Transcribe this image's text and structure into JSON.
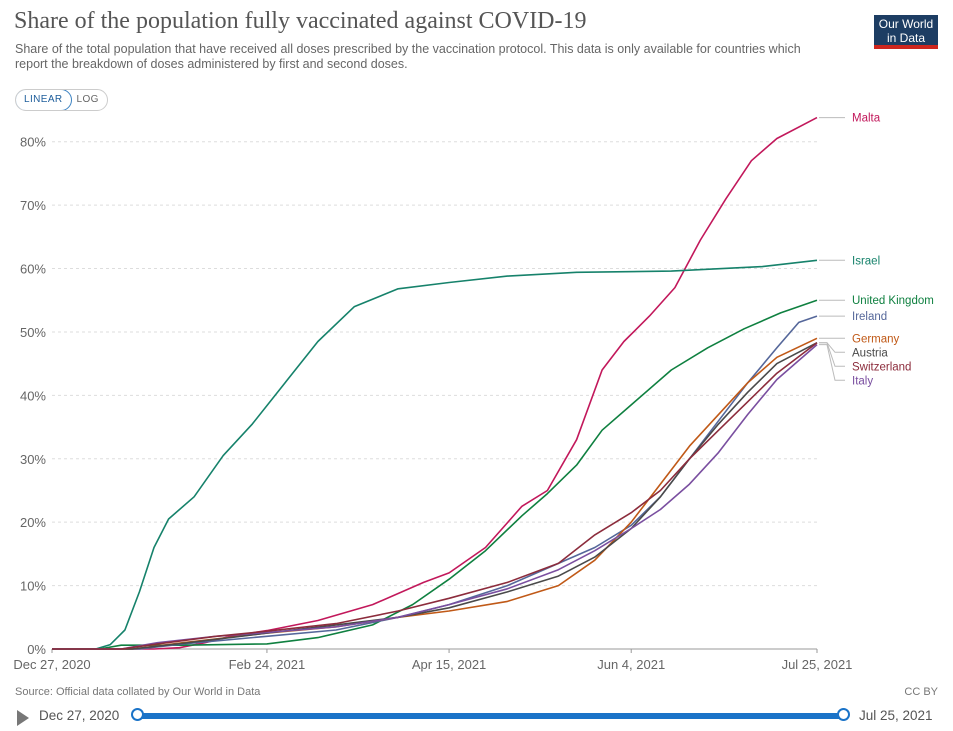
{
  "header": {
    "title": "Share of the population fully vaccinated against COVID-19",
    "subtitle": "Share of the total population that have received all doses prescribed by the vaccination protocol. This data is only available for countries which report the breakdown of doses administered by first and second doses.",
    "logo_line1": "Our World",
    "logo_line2": "in Data"
  },
  "controls": {
    "linear_label": "LINEAR",
    "log_label": "LOG"
  },
  "footer": {
    "source": "Source: Official data collated by Our World in Data",
    "license": "CC BY"
  },
  "timeline": {
    "start_label": "Dec 27, 2020",
    "end_label": "Jul 25, 2021",
    "start_fraction": 0,
    "end_fraction": 1
  },
  "colors": {
    "grid": "#dddddd",
    "axis_text": "#666666",
    "accent": "#1a73c8"
  },
  "chart_data": {
    "type": "line",
    "title": "Share of the population fully vaccinated against COVID-19",
    "x_axis": {
      "type": "date",
      "range": [
        "2020-12-27",
        "2021-07-25"
      ],
      "ticks": [
        {
          "date": "2020-12-27",
          "label": "Dec 27, 2020"
        },
        {
          "date": "2021-02-24",
          "label": "Feb 24, 2021"
        },
        {
          "date": "2021-04-15",
          "label": "Apr 15, 2021"
        },
        {
          "date": "2021-06-04",
          "label": "Jun 4, 2021"
        },
        {
          "date": "2021-07-25",
          "label": "Jul 25, 2021"
        }
      ]
    },
    "y_axis": {
      "range": [
        0,
        85
      ],
      "ticks": [
        {
          "value": 0,
          "label": "0%"
        },
        {
          "value": 10,
          "label": "10%"
        },
        {
          "value": 20,
          "label": "20%"
        },
        {
          "value": 30,
          "label": "30%"
        },
        {
          "value": 40,
          "label": "40%"
        },
        {
          "value": 50,
          "label": "50%"
        },
        {
          "value": 60,
          "label": "60%"
        },
        {
          "value": 70,
          "label": "70%"
        },
        {
          "value": 80,
          "label": "80%"
        }
      ]
    },
    "grid": true,
    "legend": "right",
    "series": [
      {
        "name": "Malta",
        "color": "#c2185b",
        "points": [
          [
            "2021-01-24",
            0.0
          ],
          [
            "2021-01-31",
            0.2
          ],
          [
            "2021-02-07",
            1.0
          ],
          [
            "2021-02-14",
            2.0
          ],
          [
            "2021-02-24",
            2.9
          ],
          [
            "2021-03-10",
            4.5
          ],
          [
            "2021-03-25",
            7.0
          ],
          [
            "2021-04-08",
            10.5
          ],
          [
            "2021-04-15",
            12.0
          ],
          [
            "2021-04-25",
            16.0
          ],
          [
            "2021-05-05",
            22.5
          ],
          [
            "2021-05-12",
            25.0
          ],
          [
            "2021-05-20",
            33.0
          ],
          [
            "2021-05-27",
            44.0
          ],
          [
            "2021-06-02",
            48.5
          ],
          [
            "2021-06-09",
            52.5
          ],
          [
            "2021-06-16",
            57.0
          ],
          [
            "2021-06-23",
            64.5
          ],
          [
            "2021-06-30",
            71.0
          ],
          [
            "2021-07-07",
            77.0
          ],
          [
            "2021-07-14",
            80.5
          ],
          [
            "2021-07-25",
            83.8
          ]
        ]
      },
      {
        "name": "Israel",
        "color": "#16826b",
        "points": [
          [
            "2021-01-08",
            0.0
          ],
          [
            "2021-01-12",
            0.7
          ],
          [
            "2021-01-16",
            3.0
          ],
          [
            "2021-01-20",
            9.0
          ],
          [
            "2021-01-24",
            16.0
          ],
          [
            "2021-01-28",
            20.5
          ],
          [
            "2021-02-04",
            24.0
          ],
          [
            "2021-02-12",
            30.5
          ],
          [
            "2021-02-20",
            35.5
          ],
          [
            "2021-03-01",
            42.0
          ],
          [
            "2021-03-10",
            48.5
          ],
          [
            "2021-03-20",
            54.0
          ],
          [
            "2021-04-01",
            56.8
          ],
          [
            "2021-04-15",
            57.8
          ],
          [
            "2021-05-01",
            58.8
          ],
          [
            "2021-05-20",
            59.4
          ],
          [
            "2021-06-15",
            59.6
          ],
          [
            "2021-07-10",
            60.3
          ],
          [
            "2021-07-25",
            61.3
          ]
        ]
      },
      {
        "name": "United Kingdom",
        "color": "#0f8040",
        "points": [
          [
            "2021-01-09",
            0.0
          ],
          [
            "2021-01-15",
            0.6
          ],
          [
            "2021-02-01",
            0.6
          ],
          [
            "2021-02-24",
            0.8
          ],
          [
            "2021-03-10",
            1.8
          ],
          [
            "2021-03-25",
            3.8
          ],
          [
            "2021-04-05",
            7.0
          ],
          [
            "2021-04-15",
            11.0
          ],
          [
            "2021-04-25",
            15.5
          ],
          [
            "2021-05-05",
            21.0
          ],
          [
            "2021-05-12",
            24.5
          ],
          [
            "2021-05-20",
            29.0
          ],
          [
            "2021-05-27",
            34.5
          ],
          [
            "2021-06-04",
            38.5
          ],
          [
            "2021-06-15",
            44.0
          ],
          [
            "2021-06-25",
            47.5
          ],
          [
            "2021-07-05",
            50.5
          ],
          [
            "2021-07-15",
            53.0
          ],
          [
            "2021-07-25",
            55.0
          ]
        ]
      },
      {
        "name": "Ireland",
        "color": "#55679a",
        "points": [
          [
            "2021-01-20",
            0.0
          ],
          [
            "2021-02-01",
            0.8
          ],
          [
            "2021-02-24",
            2.0
          ],
          [
            "2021-03-15",
            3.0
          ],
          [
            "2021-04-01",
            5.0
          ],
          [
            "2021-04-15",
            7.0
          ],
          [
            "2021-05-01",
            10.0
          ],
          [
            "2021-05-15",
            13.5
          ],
          [
            "2021-05-25",
            16.0
          ],
          [
            "2021-06-04",
            19.5
          ],
          [
            "2021-06-12",
            24.0
          ],
          [
            "2021-06-20",
            30.0
          ],
          [
            "2021-06-28",
            36.0
          ],
          [
            "2021-07-06",
            42.0
          ],
          [
            "2021-07-14",
            47.5
          ],
          [
            "2021-07-20",
            51.5
          ],
          [
            "2021-07-25",
            52.5
          ]
        ]
      },
      {
        "name": "Germany",
        "color": "#c05917",
        "points": [
          [
            "2021-01-18",
            0.0
          ],
          [
            "2021-02-01",
            1.0
          ],
          [
            "2021-02-24",
            2.5
          ],
          [
            "2021-03-15",
            3.5
          ],
          [
            "2021-04-01",
            5.0
          ],
          [
            "2021-04-15",
            6.0
          ],
          [
            "2021-05-01",
            7.5
          ],
          [
            "2021-05-15",
            10.0
          ],
          [
            "2021-05-25",
            14.0
          ],
          [
            "2021-06-04",
            20.0
          ],
          [
            "2021-06-12",
            26.0
          ],
          [
            "2021-06-20",
            32.0
          ],
          [
            "2021-06-28",
            37.0
          ],
          [
            "2021-07-06",
            42.0
          ],
          [
            "2021-07-14",
            46.0
          ],
          [
            "2021-07-25",
            49.0
          ]
        ]
      },
      {
        "name": "Austria",
        "color": "#4a4a4a",
        "points": [
          [
            "2021-01-18",
            0.0
          ],
          [
            "2021-02-01",
            0.9
          ],
          [
            "2021-02-24",
            2.5
          ],
          [
            "2021-03-15",
            3.8
          ],
          [
            "2021-04-01",
            5.0
          ],
          [
            "2021-04-15",
            6.5
          ],
          [
            "2021-05-01",
            9.0
          ],
          [
            "2021-05-15",
            11.5
          ],
          [
            "2021-05-25",
            14.5
          ],
          [
            "2021-06-04",
            19.0
          ],
          [
            "2021-06-12",
            24.0
          ],
          [
            "2021-06-20",
            30.0
          ],
          [
            "2021-06-28",
            35.5
          ],
          [
            "2021-07-06",
            40.5
          ],
          [
            "2021-07-14",
            45.0
          ],
          [
            "2021-07-25",
            48.3
          ]
        ]
      },
      {
        "name": "Italy",
        "color": "#7a4fa0",
        "points": [
          [
            "2021-01-15",
            0.0
          ],
          [
            "2021-01-25",
            1.0
          ],
          [
            "2021-02-10",
            2.0
          ],
          [
            "2021-02-24",
            2.6
          ],
          [
            "2021-03-15",
            3.5
          ],
          [
            "2021-04-01",
            5.0
          ],
          [
            "2021-04-15",
            7.0
          ],
          [
            "2021-05-01",
            9.5
          ],
          [
            "2021-05-15",
            12.5
          ],
          [
            "2021-05-25",
            15.5
          ],
          [
            "2021-06-04",
            19.0
          ],
          [
            "2021-06-12",
            22.0
          ],
          [
            "2021-06-20",
            26.0
          ],
          [
            "2021-06-28",
            31.0
          ],
          [
            "2021-07-06",
            37.0
          ],
          [
            "2021-07-14",
            42.5
          ],
          [
            "2021-07-25",
            48.0
          ]
        ]
      },
      {
        "name": "Switzerland",
        "color": "#8c2c3c",
        "points": [
          [
            "2021-01-15",
            0.0
          ],
          [
            "2021-01-25",
            0.8
          ],
          [
            "2021-02-10",
            2.0
          ],
          [
            "2021-02-24",
            2.8
          ],
          [
            "2021-03-15",
            4.0
          ],
          [
            "2021-04-01",
            6.0
          ],
          [
            "2021-04-15",
            8.0
          ],
          [
            "2021-05-01",
            10.5
          ],
          [
            "2021-05-15",
            13.5
          ],
          [
            "2021-05-25",
            18.0
          ],
          [
            "2021-06-04",
            21.5
          ],
          [
            "2021-06-12",
            25.0
          ],
          [
            "2021-06-20",
            30.0
          ],
          [
            "2021-06-28",
            34.5
          ],
          [
            "2021-07-06",
            39.0
          ],
          [
            "2021-07-14",
            43.5
          ],
          [
            "2021-07-25",
            48.3
          ]
        ]
      }
    ]
  }
}
